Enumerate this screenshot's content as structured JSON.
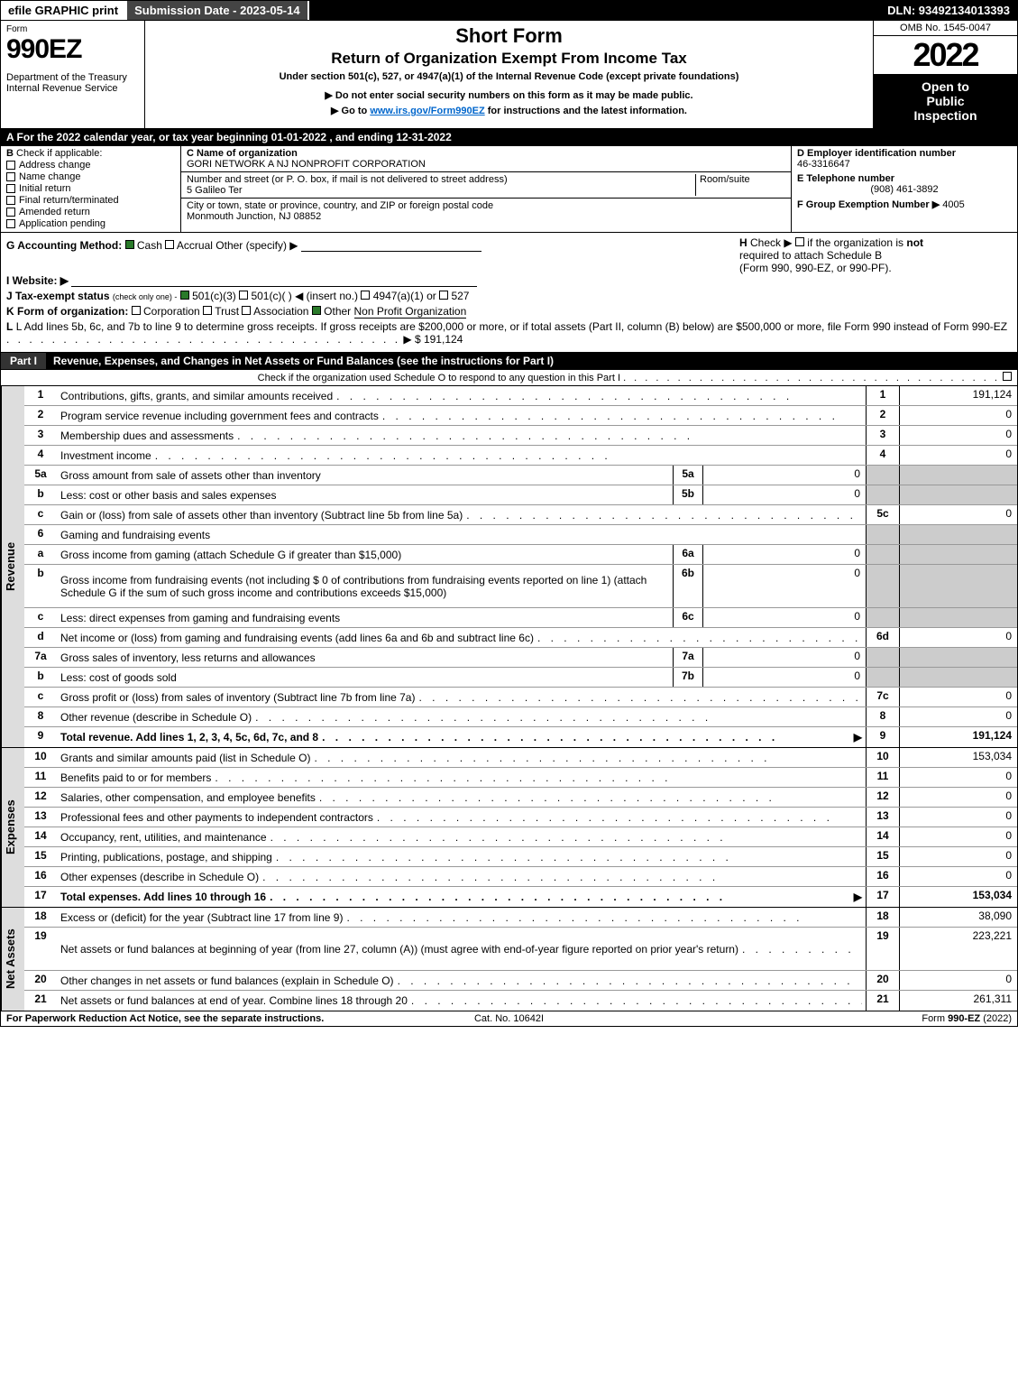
{
  "topbar": {
    "efile": "efile GRAPHIC print",
    "submission": "Submission Date - 2023-05-14",
    "dln": "DLN: 93492134013393"
  },
  "header": {
    "form_label": "Form",
    "form_number": "990EZ",
    "dept1": "Department of the Treasury",
    "dept2": "Internal Revenue Service",
    "title": "Short Form",
    "subtitle": "Return of Organization Exempt From Income Tax",
    "note1": "Under section 501(c), 527, or 4947(a)(1) of the Internal Revenue Code (except private foundations)",
    "note2": "▶ Do not enter social security numbers on this form as it may be made public.",
    "note3_pre": "▶ Go to ",
    "note3_link": "www.irs.gov/Form990EZ",
    "note3_post": " for instructions and the latest information.",
    "omb": "OMB No. 1545-0047",
    "year": "2022",
    "inspect1": "Open to",
    "inspect2": "Public",
    "inspect3": "Inspection"
  },
  "row_a": "A  For the 2022 calendar year, or tax year beginning 01-01-2022  , and ending 12-31-2022",
  "col_b": {
    "label": "B",
    "text": "Check if applicable:",
    "items": [
      "Address change",
      "Name change",
      "Initial return",
      "Final return/terminated",
      "Amended return",
      "Application pending"
    ]
  },
  "col_c": {
    "c_label": "C Name of organization",
    "c_value": "GORI NETWORK A NJ NONPROFIT CORPORATION",
    "street_label": "Number and street (or P. O. box, if mail is not delivered to street address)",
    "street_value": "5 Galileo Ter",
    "room_label": "Room/suite",
    "city_label": "City or town, state or province, country, and ZIP or foreign postal code",
    "city_value": "Monmouth Junction, NJ  08852"
  },
  "col_d": {
    "d_label": "D Employer identification number",
    "d_value": "46-3316647",
    "e_label": "E Telephone number",
    "e_value": "(908) 461-3892",
    "f_label": "F Group Exemption Number  ▶",
    "f_value": "4005"
  },
  "section_ghi": {
    "g_label": "G Accounting Method:",
    "g_cash": "Cash",
    "g_accrual": "Accrual",
    "g_other": "Other (specify) ▶",
    "h_label": "H",
    "h_text1": "Check ▶",
    "h_text2": "if the organization is",
    "h_text3": "not",
    "h_text4": "required to attach Schedule B",
    "h_text5": "(Form 990, 990-EZ, or 990-PF).",
    "i_label": "I Website: ▶",
    "j_label": "J Tax-exempt status",
    "j_note": "(check only one) -",
    "j_501c3": "501(c)(3)",
    "j_501c": "501(c)(  ) ◀ (insert no.)",
    "j_4947": "4947(a)(1) or",
    "j_527": "527",
    "k_label": "K Form of organization:",
    "k_opts": [
      "Corporation",
      "Trust",
      "Association",
      "Other"
    ],
    "k_other_val": "Non Profit Organization",
    "l_text": "L Add lines 5b, 6c, and 7b to line 9 to determine gross receipts. If gross receipts are $200,000 or more, or if total assets (Part II, column (B) below) are $500,000 or more, file Form 990 instead of Form 990-EZ",
    "l_value": "▶ $ 191,124"
  },
  "part1": {
    "tag": "Part I",
    "title": "Revenue, Expenses, and Changes in Net Assets or Fund Balances (see the instructions for Part I)",
    "check_note": "Check if the organization used Schedule O to respond to any question in this Part I"
  },
  "sections": {
    "revenue": "Revenue",
    "expenses": "Expenses",
    "netassets": "Net Assets"
  },
  "rows": [
    {
      "n": "1",
      "desc": "Contributions, gifts, grants, and similar amounts received",
      "rn": "1",
      "rv": "191,124"
    },
    {
      "n": "2",
      "desc": "Program service revenue including government fees and contracts",
      "rn": "2",
      "rv": "0"
    },
    {
      "n": "3",
      "desc": "Membership dues and assessments",
      "rn": "3",
      "rv": "0"
    },
    {
      "n": "4",
      "desc": "Investment income",
      "rn": "4",
      "rv": "0"
    },
    {
      "n": "5a",
      "desc": "Gross amount from sale of assets other than inventory",
      "sn": "5a",
      "sv": "0",
      "shaded": true
    },
    {
      "n": "b",
      "desc": "Less: cost or other basis and sales expenses",
      "sn": "5b",
      "sv": "0",
      "shaded": true
    },
    {
      "n": "c",
      "desc": "Gain or (loss) from sale of assets other than inventory (Subtract line 5b from line 5a)",
      "rn": "5c",
      "rv": "0"
    },
    {
      "n": "6",
      "desc": "Gaming and fundraising events",
      "shaded": true,
      "noval": true
    },
    {
      "n": "a",
      "desc": "Gross income from gaming (attach Schedule G if greater than $15,000)",
      "sn": "6a",
      "sv": "0",
      "shaded": true
    },
    {
      "n": "b",
      "desc": "Gross income from fundraising events (not including $  0               of contributions from fundraising events reported on line 1) (attach Schedule G if the sum of such gross income and contributions exceeds $15,000)",
      "sn": "6b",
      "sv": "0",
      "shaded": true,
      "tall": true
    },
    {
      "n": "c",
      "desc": "Less: direct expenses from gaming and fundraising events",
      "sn": "6c",
      "sv": "0",
      "shaded": true
    },
    {
      "n": "d",
      "desc": "Net income or (loss) from gaming and fundraising events (add lines 6a and 6b and subtract line 6c)",
      "rn": "6d",
      "rv": "0"
    },
    {
      "n": "7a",
      "desc": "Gross sales of inventory, less returns and allowances",
      "sn": "7a",
      "sv": "0",
      "shaded": true
    },
    {
      "n": "b",
      "desc": "Less: cost of goods sold",
      "sn": "7b",
      "sv": "0",
      "shaded": true
    },
    {
      "n": "c",
      "desc": "Gross profit or (loss) from sales of inventory (Subtract line 7b from line 7a)",
      "rn": "7c",
      "rv": "0"
    },
    {
      "n": "8",
      "desc": "Other revenue (describe in Schedule O)",
      "rn": "8",
      "rv": "0"
    },
    {
      "n": "9",
      "desc": "Total revenue. Add lines 1, 2, 3, 4, 5c, 6d, 7c, and 8",
      "rn": "9",
      "rv": "191,124",
      "bold": true,
      "arrow": true
    }
  ],
  "exp_rows": [
    {
      "n": "10",
      "desc": "Grants and similar amounts paid (list in Schedule O)",
      "rn": "10",
      "rv": "153,034"
    },
    {
      "n": "11",
      "desc": "Benefits paid to or for members",
      "rn": "11",
      "rv": "0"
    },
    {
      "n": "12",
      "desc": "Salaries, other compensation, and employee benefits",
      "rn": "12",
      "rv": "0"
    },
    {
      "n": "13",
      "desc": "Professional fees and other payments to independent contractors",
      "rn": "13",
      "rv": "0"
    },
    {
      "n": "14",
      "desc": "Occupancy, rent, utilities, and maintenance",
      "rn": "14",
      "rv": "0"
    },
    {
      "n": "15",
      "desc": "Printing, publications, postage, and shipping",
      "rn": "15",
      "rv": "0"
    },
    {
      "n": "16",
      "desc": "Other expenses (describe in Schedule O)",
      "rn": "16",
      "rv": "0"
    },
    {
      "n": "17",
      "desc": "Total expenses. Add lines 10 through 16",
      "rn": "17",
      "rv": "153,034",
      "bold": true,
      "arrow": true
    }
  ],
  "net_rows": [
    {
      "n": "18",
      "desc": "Excess or (deficit) for the year (Subtract line 17 from line 9)",
      "rn": "18",
      "rv": "38,090"
    },
    {
      "n": "19",
      "desc": "Net assets or fund balances at beginning of year (from line 27, column (A)) (must agree with end-of-year figure reported on prior year's return)",
      "rn": "19",
      "rv": "223,221",
      "tall": true
    },
    {
      "n": "20",
      "desc": "Other changes in net assets or fund balances (explain in Schedule O)",
      "rn": "20",
      "rv": "0"
    },
    {
      "n": "21",
      "desc": "Net assets or fund balances at end of year. Combine lines 18 through 20",
      "rn": "21",
      "rv": "261,311"
    }
  ],
  "footer": {
    "left": "For Paperwork Reduction Act Notice, see the separate instructions.",
    "mid": "Cat. No. 10642I",
    "right_pre": "Form ",
    "right_bold": "990-EZ",
    "right_post": " (2022)"
  },
  "dots": ".  .  .  .  .  .  .  .  .  .  .  .  .  .  .  .  .  .  .  .  .  .  .  .  .  .  .  .  .  .  .  .  .  .  ."
}
